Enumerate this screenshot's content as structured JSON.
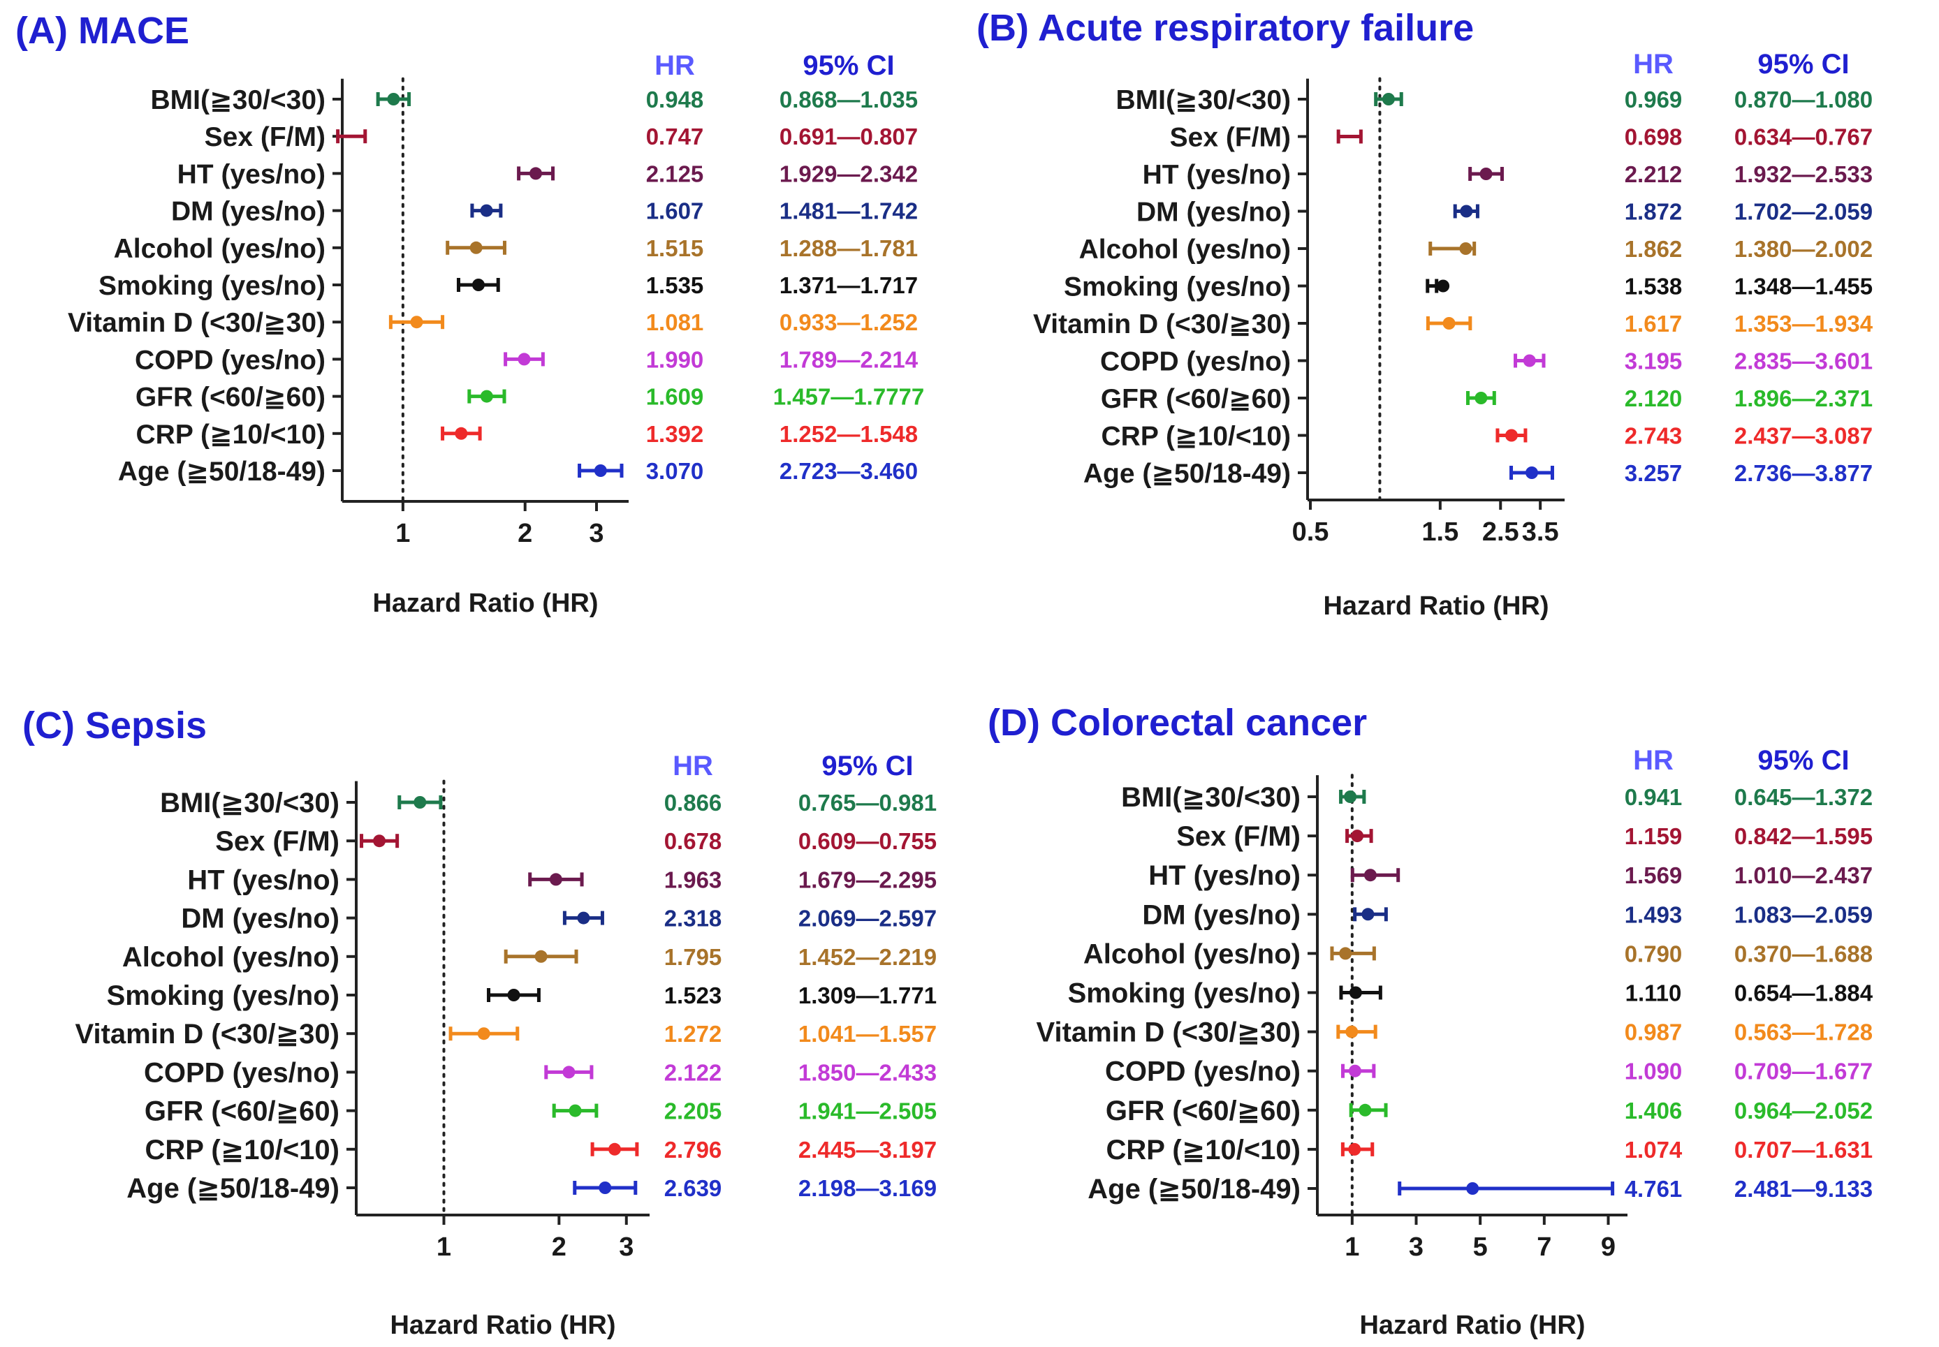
{
  "figure": {
    "row_labels": [
      "BMI(≧30/<30)",
      "Sex (F/M)",
      "HT (yes/no)",
      "DM (yes/no)",
      "Alcohol (yes/no)",
      "Smoking (yes/no)",
      "Vitamin D (<30/≧30)",
      "COPD (yes/no)",
      "GFR (<60/≧60)",
      "CRP (≧10/<10)",
      "Age (≧50/18-49)"
    ],
    "row_colors": [
      "#1e7a4c",
      "#a31533",
      "#6b1a4e",
      "#1a2e86",
      "#a8732a",
      "#111111",
      "#f28a1c",
      "#c23ad6",
      "#2aba2a",
      "#ee2a2a",
      "#2030c8"
    ],
    "title_color": "#1f1fd0",
    "hr_header_color": "#5a5aff",
    "ci_header_color": "#1f1fd0"
  },
  "chart_data": [
    {
      "type": "forest",
      "title": "(A) MACE",
      "xlabel": "Hazard Ratio (HR)",
      "xscale": "log",
      "xlim": [
        0.72,
        3.6
      ],
      "xticks": [
        1,
        2,
        3
      ],
      "xtick_labels": [
        "1",
        "2",
        "3"
      ],
      "reference_line": 1,
      "hr_header": "HR",
      "ci_header": "95% CI",
      "rows": [
        {
          "label": "BMI(≧30/<30)",
          "hr": 0.948,
          "ci_low": 0.868,
          "ci_high": 1.035,
          "hr_text": "0.948",
          "ci_text": "0.868—1.035"
        },
        {
          "label": "Sex (F/M)",
          "hr": 0.747,
          "ci_low": 0.691,
          "ci_high": 0.807,
          "hr_text": "0.747",
          "ci_text": "0.691—0.807"
        },
        {
          "label": "HT (yes/no)",
          "hr": 2.125,
          "ci_low": 1.929,
          "ci_high": 2.342,
          "hr_text": "2.125",
          "ci_text": "1.929—2.342"
        },
        {
          "label": "DM (yes/no)",
          "hr": 1.607,
          "ci_low": 1.481,
          "ci_high": 1.742,
          "hr_text": "1.607",
          "ci_text": "1.481—1.742"
        },
        {
          "label": "Alcohol (yes/no)",
          "hr": 1.515,
          "ci_low": 1.288,
          "ci_high": 1.781,
          "hr_text": "1.515",
          "ci_text": "1.288—1.781"
        },
        {
          "label": "Smoking (yes/no)",
          "hr": 1.535,
          "ci_low": 1.371,
          "ci_high": 1.717,
          "hr_text": "1.535",
          "ci_text": "1.371—1.717"
        },
        {
          "label": "Vitamin D (<30/≧30)",
          "hr": 1.081,
          "ci_low": 0.933,
          "ci_high": 1.252,
          "hr_text": "1.081",
          "ci_text": "0.933—1.252"
        },
        {
          "label": "COPD (yes/no)",
          "hr": 1.99,
          "ci_low": 1.789,
          "ci_high": 2.214,
          "hr_text": "1.990",
          "ci_text": "1.789—2.214"
        },
        {
          "label": "GFR (<60/≧60)",
          "hr": 1.609,
          "ci_low": 1.457,
          "ci_high": 1.7777,
          "hr_text": "1.609",
          "ci_text": "1.457—1.7777"
        },
        {
          "label": "CRP (≧10/<10)",
          "hr": 1.392,
          "ci_low": 1.252,
          "ci_high": 1.548,
          "hr_text": "1.392",
          "ci_text": "1.252—1.548"
        },
        {
          "label": "Age (≧50/18-49)",
          "hr": 3.07,
          "ci_low": 2.723,
          "ci_high": 3.46,
          "hr_text": "3.070",
          "ci_text": "2.723—3.460"
        }
      ]
    },
    {
      "type": "forest",
      "title": "(B) Acute respiratory failure",
      "xlabel": "Hazard Ratio (HR)",
      "xscale": "log",
      "xlim": [
        0.5,
        4.3
      ],
      "xticks": [
        0.5,
        1.5,
        2.5,
        3.5
      ],
      "xtick_labels": [
        "0.5",
        "1.5",
        "2.5",
        "3.5"
      ],
      "reference_line": 0.9,
      "hr_header": "HR",
      "ci_header": "95% CI",
      "rows": [
        {
          "label": "BMI(≧30/<30)",
          "hr": 0.969,
          "ci_low": 0.87,
          "ci_high": 1.08,
          "hr_text": "0.969",
          "ci_text": "0.870—1.080"
        },
        {
          "label": "Sex (F/M)",
          "hr": 0.698,
          "ci_low": 0.634,
          "ci_high": 0.767,
          "hr_text": "0.698",
          "ci_text": "0.634—0.767"
        },
        {
          "label": "HT (yes/no)",
          "hr": 2.212,
          "ci_low": 1.932,
          "ci_high": 2.533,
          "hr_text": "2.212",
          "ci_text": "1.932—2.533"
        },
        {
          "label": "DM (yes/no)",
          "hr": 1.872,
          "ci_low": 1.702,
          "ci_high": 2.059,
          "hr_text": "1.872",
          "ci_text": "1.702—2.059"
        },
        {
          "label": "Alcohol (yes/no)",
          "hr": 1.862,
          "ci_low": 1.38,
          "ci_high": 2.002,
          "hr_text": "1.862",
          "ci_text": "1.380—2.002"
        },
        {
          "label": "Smoking (yes/no)",
          "hr": 1.538,
          "ci_low": 1.348,
          "ci_high": 1.455,
          "hr_text": "1.538",
          "ci_text": "1.348—1.455"
        },
        {
          "label": "Vitamin D (<30/≧30)",
          "hr": 1.617,
          "ci_low": 1.353,
          "ci_high": 1.934,
          "hr_text": "1.617",
          "ci_text": "1.353—1.934"
        },
        {
          "label": "COPD (yes/no)",
          "hr": 3.195,
          "ci_low": 2.835,
          "ci_high": 3.601,
          "hr_text": "3.195",
          "ci_text": "2.835—3.601"
        },
        {
          "label": "GFR (<60/≧60)",
          "hr": 2.12,
          "ci_low": 1.896,
          "ci_high": 2.371,
          "hr_text": "2.120",
          "ci_text": "1.896—2.371"
        },
        {
          "label": "CRP (≧10/<10)",
          "hr": 2.743,
          "ci_low": 2.437,
          "ci_high": 3.087,
          "hr_text": "2.743",
          "ci_text": "2.437—3.087"
        },
        {
          "label": "Age (≧50/18-49)",
          "hr": 3.257,
          "ci_low": 2.736,
          "ci_high": 3.877,
          "hr_text": "3.257",
          "ci_text": "2.736—3.877"
        }
      ]
    },
    {
      "type": "forest",
      "title": "(C) Sepsis",
      "xlabel": "Hazard Ratio (HR)",
      "xscale": "log",
      "xlim": [
        0.6,
        3.45
      ],
      "xticks": [
        1,
        2,
        3
      ],
      "xtick_labels": [
        "1",
        "2",
        "3"
      ],
      "reference_line": 1,
      "hr_header": "HR",
      "ci_header": "95% CI",
      "rows": [
        {
          "label": "BMI(≧30/<30)",
          "hr": 0.866,
          "ci_low": 0.765,
          "ci_high": 0.981,
          "hr_text": "0.866",
          "ci_text": "0.765—0.981"
        },
        {
          "label": "Sex (F/M)",
          "hr": 0.678,
          "ci_low": 0.609,
          "ci_high": 0.755,
          "hr_text": "0.678",
          "ci_text": "0.609—0.755"
        },
        {
          "label": "HT (yes/no)",
          "hr": 1.963,
          "ci_low": 1.679,
          "ci_high": 2.295,
          "hr_text": "1.963",
          "ci_text": "1.679—2.295"
        },
        {
          "label": "DM (yes/no)",
          "hr": 2.318,
          "ci_low": 2.069,
          "ci_high": 2.597,
          "hr_text": "2.318",
          "ci_text": "2.069—2.597"
        },
        {
          "label": "Alcohol (yes/no)",
          "hr": 1.795,
          "ci_low": 1.452,
          "ci_high": 2.219,
          "hr_text": "1.795",
          "ci_text": "1.452—2.219"
        },
        {
          "label": "Smoking (yes/no)",
          "hr": 1.523,
          "ci_low": 1.309,
          "ci_high": 1.771,
          "hr_text": "1.523",
          "ci_text": "1.309—1.771"
        },
        {
          "label": "Vitamin D (<30/≧30)",
          "hr": 1.272,
          "ci_low": 1.041,
          "ci_high": 1.557,
          "hr_text": "1.272",
          "ci_text": "1.041—1.557"
        },
        {
          "label": "COPD (yes/no)",
          "hr": 2.122,
          "ci_low": 1.85,
          "ci_high": 2.433,
          "hr_text": "2.122",
          "ci_text": "1.850—2.433"
        },
        {
          "label": "GFR (<60/≧60)",
          "hr": 2.205,
          "ci_low": 1.941,
          "ci_high": 2.505,
          "hr_text": "2.205",
          "ci_text": "1.941—2.505"
        },
        {
          "label": "CRP (≧10/<10)",
          "hr": 2.796,
          "ci_low": 2.445,
          "ci_high": 3.197,
          "hr_text": "2.796",
          "ci_text": "2.445—3.197"
        },
        {
          "label": "Age (≧50/18-49)",
          "hr": 2.639,
          "ci_low": 2.198,
          "ci_high": 3.169,
          "hr_text": "2.639",
          "ci_text": "2.198—3.169"
        }
      ]
    },
    {
      "type": "forest",
      "title": "(D) Colorectal cancer",
      "xlabel": "Hazard Ratio (HR)",
      "xscale": "linear",
      "xlim": [
        0,
        9.6
      ],
      "xticks": [
        1,
        3,
        5,
        7,
        9
      ],
      "xtick_labels": [
        "1",
        "3",
        "5",
        "7",
        "9"
      ],
      "reference_line": 1,
      "hr_header": "HR",
      "ci_header": "95% CI",
      "rows": [
        {
          "label": "BMI(≧30/<30)",
          "hr": 0.941,
          "ci_low": 0.645,
          "ci_high": 1.372,
          "hr_text": "0.941",
          "ci_text": "0.645—1.372"
        },
        {
          "label": "Sex (F/M)",
          "hr": 1.159,
          "ci_low": 0.842,
          "ci_high": 1.595,
          "hr_text": "1.159",
          "ci_text": "0.842—1.595"
        },
        {
          "label": "HT (yes/no)",
          "hr": 1.569,
          "ci_low": 1.01,
          "ci_high": 2.437,
          "hr_text": "1.569",
          "ci_text": "1.010—2.437"
        },
        {
          "label": "DM (yes/no)",
          "hr": 1.493,
          "ci_low": 1.083,
          "ci_high": 2.059,
          "hr_text": "1.493",
          "ci_text": "1.083—2.059"
        },
        {
          "label": "Alcohol (yes/no)",
          "hr": 0.79,
          "ci_low": 0.37,
          "ci_high": 1.688,
          "hr_text": "0.790",
          "ci_text": "0.370—1.688"
        },
        {
          "label": "Smoking (yes/no)",
          "hr": 1.11,
          "ci_low": 0.654,
          "ci_high": 1.884,
          "hr_text": "1.110",
          "ci_text": "0.654—1.884"
        },
        {
          "label": "Vitamin D (<30/≧30)",
          "hr": 0.987,
          "ci_low": 0.563,
          "ci_high": 1.728,
          "hr_text": "0.987",
          "ci_text": "0.563—1.728"
        },
        {
          "label": "COPD (yes/no)",
          "hr": 1.09,
          "ci_low": 0.709,
          "ci_high": 1.677,
          "hr_text": "1.090",
          "ci_text": "0.709—1.677"
        },
        {
          "label": "GFR (<60/≧60)",
          "hr": 1.406,
          "ci_low": 0.964,
          "ci_high": 2.052,
          "hr_text": "1.406",
          "ci_text": "0.964—2.052"
        },
        {
          "label": "CRP (≧10/<10)",
          "hr": 1.074,
          "ci_low": 0.707,
          "ci_high": 1.631,
          "hr_text": "1.074",
          "ci_text": "0.707—1.631"
        },
        {
          "label": "Age (≧50/18-49)",
          "hr": 4.761,
          "ci_low": 2.481,
          "ci_high": 9.133,
          "hr_text": "4.761",
          "ci_text": "2.481—9.133"
        }
      ]
    }
  ]
}
